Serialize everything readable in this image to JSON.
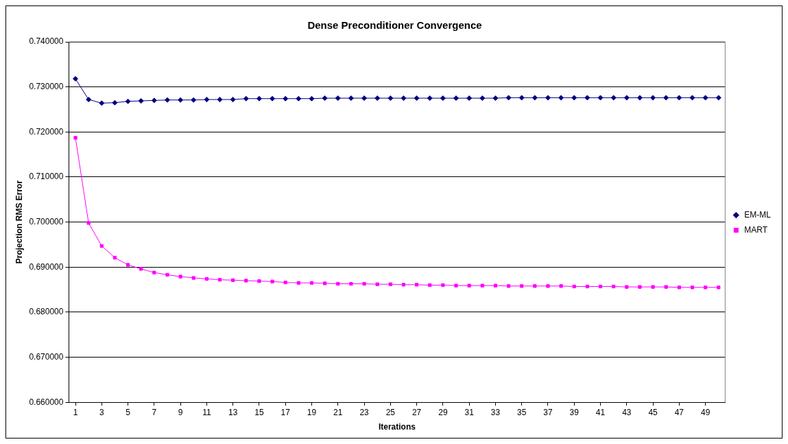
{
  "chart_data": {
    "type": "line",
    "title": "Dense Preconditioner Convergence",
    "xlabel": "Iterations",
    "ylabel": "Projection RMS Error",
    "x": [
      1,
      2,
      3,
      4,
      5,
      6,
      7,
      8,
      9,
      10,
      11,
      12,
      13,
      14,
      15,
      16,
      17,
      18,
      19,
      20,
      21,
      22,
      23,
      24,
      25,
      26,
      27,
      28,
      29,
      30,
      31,
      32,
      33,
      34,
      35,
      36,
      37,
      38,
      39,
      40,
      41,
      42,
      43,
      44,
      45,
      46,
      47,
      48,
      49,
      50
    ],
    "xlim": [
      0.5,
      50.5
    ],
    "xticks": [
      1,
      3,
      5,
      7,
      9,
      11,
      13,
      15,
      17,
      19,
      21,
      23,
      25,
      27,
      29,
      31,
      33,
      35,
      37,
      39,
      41,
      43,
      45,
      47,
      49
    ],
    "series": [
      {
        "name": "EM-ML",
        "color": "#000080",
        "marker": "diamond",
        "values": [
          0.7318,
          0.7272,
          0.7264,
          0.7265,
          0.7268,
          0.7269,
          0.727,
          0.7271,
          0.7271,
          0.7271,
          0.7272,
          0.7272,
          0.7272,
          0.7274,
          0.7274,
          0.7274,
          0.7274,
          0.7274,
          0.7274,
          0.7275,
          0.7275,
          0.7275,
          0.7275,
          0.7275,
          0.7275,
          0.7275,
          0.7275,
          0.7275,
          0.7275,
          0.7275,
          0.7275,
          0.7275,
          0.7275,
          0.7276,
          0.7276,
          0.7276,
          0.7276,
          0.7276,
          0.7276,
          0.7276,
          0.7276,
          0.7276,
          0.7276,
          0.7276,
          0.7276,
          0.7276,
          0.7276,
          0.7276,
          0.7276,
          0.7276
        ]
      },
      {
        "name": "MART",
        "color": "#ff00ff",
        "marker": "square",
        "values": [
          0.7187,
          0.6998,
          0.6947,
          0.6921,
          0.6905,
          0.6896,
          0.6888,
          0.6883,
          0.6879,
          0.6876,
          0.6874,
          0.6872,
          0.6871,
          0.687,
          0.6869,
          0.6868,
          0.6866,
          0.6865,
          0.6865,
          0.6864,
          0.6863,
          0.6863,
          0.6863,
          0.6862,
          0.6862,
          0.6861,
          0.6861,
          0.686,
          0.686,
          0.6859,
          0.6859,
          0.6859,
          0.6859,
          0.6858,
          0.6858,
          0.6858,
          0.6858,
          0.6858,
          0.6857,
          0.6857,
          0.6857,
          0.6857,
          0.6856,
          0.6856,
          0.6856,
          0.6856,
          0.6855,
          0.6855,
          0.6855,
          0.6855
        ]
      }
    ],
    "ylim": [
      0.66,
      0.74
    ],
    "yticks": [
      {
        "value": 0.66,
        "label": "0.660000"
      },
      {
        "value": 0.67,
        "label": "0.670000"
      },
      {
        "value": 0.68,
        "label": "0.680000"
      },
      {
        "value": 0.69,
        "label": "0.690000"
      },
      {
        "value": 0.7,
        "label": "0.700000"
      },
      {
        "value": 0.71,
        "label": "0.710000"
      },
      {
        "value": 0.72,
        "label": "0.720000"
      },
      {
        "value": 0.73,
        "label": "0.730000"
      },
      {
        "value": 0.74,
        "label": "0.740000"
      }
    ],
    "grid": "y",
    "legend": "right"
  }
}
